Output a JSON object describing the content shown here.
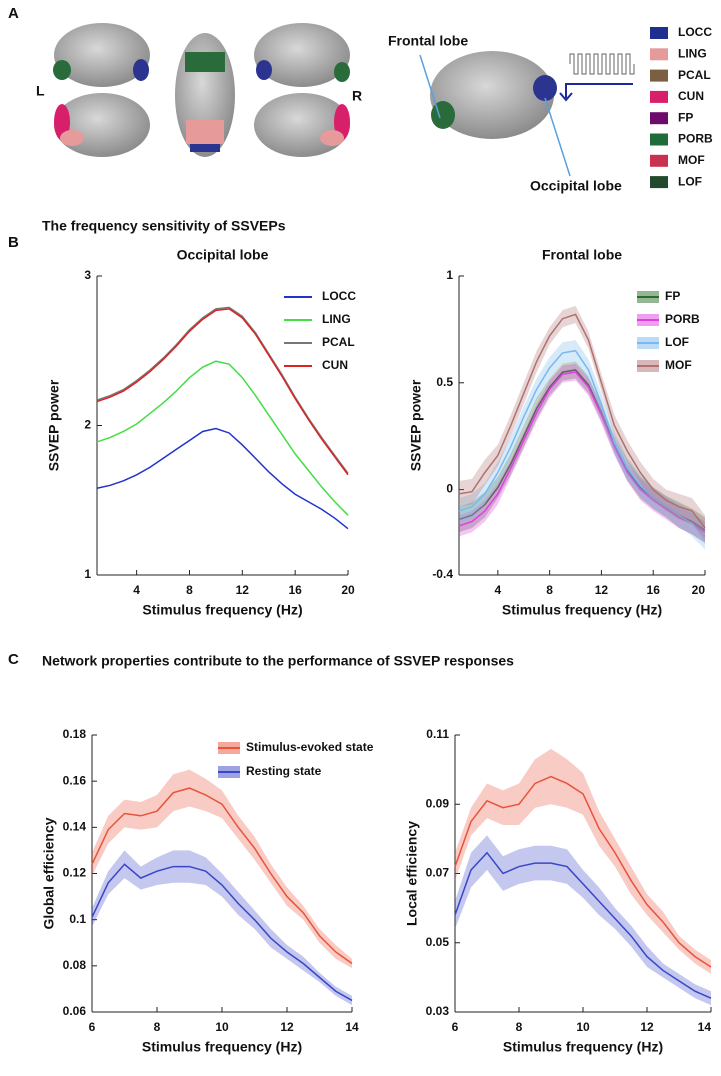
{
  "panel_a": {
    "label": "A",
    "left": "L",
    "right": "R",
    "frontal": "Frontal lobe",
    "occipital": "Occipital lobe",
    "regions": [
      {
        "name": "LOCC",
        "color": "#1f2f8f"
      },
      {
        "name": "LING",
        "color": "#e69a9a"
      },
      {
        "name": "PCAL",
        "color": "#7a6040"
      },
      {
        "name": "CUN",
        "color": "#d81f6a"
      },
      {
        "name": "FP",
        "color": "#6b0b6b"
      },
      {
        "name": "PORB",
        "color": "#1f6b3a"
      },
      {
        "name": "MOF",
        "color": "#c8314f"
      },
      {
        "name": "LOF",
        "color": "#234a2e"
      }
    ]
  },
  "panels": [
    {
      "label": "B",
      "title": "The frequency sensitivity of SSVEPs"
    },
    {
      "label": "C",
      "title": "Network properties contribute to the performance of SSVEP responses"
    }
  ],
  "chart_data": [
    {
      "type": "line",
      "title": "Occipital lobe",
      "xlabel": "Stimulus frequency (Hz)",
      "ylabel": "SSVEP power",
      "x": [
        1,
        2,
        3,
        4,
        5,
        6,
        7,
        8,
        9,
        10,
        11,
        12,
        13,
        14,
        15,
        16,
        17,
        18,
        19,
        20
      ],
      "xlim": [
        1,
        20
      ],
      "xticks": [
        4,
        8,
        12,
        16,
        20
      ],
      "ylim": [
        1,
        3
      ],
      "yticks": [
        1,
        2,
        3
      ],
      "legend": true,
      "series": [
        {
          "name": "LOCC",
          "color": "#2233cc",
          "values": [
            1.58,
            1.6,
            1.63,
            1.67,
            1.72,
            1.78,
            1.84,
            1.9,
            1.96,
            1.98,
            1.95,
            1.87,
            1.78,
            1.69,
            1.61,
            1.54,
            1.49,
            1.44,
            1.38,
            1.31
          ]
        },
        {
          "name": "LING",
          "color": "#44dd44",
          "values": [
            1.89,
            1.92,
            1.96,
            2.01,
            2.08,
            2.15,
            2.23,
            2.32,
            2.39,
            2.43,
            2.41,
            2.32,
            2.2,
            2.07,
            1.94,
            1.81,
            1.7,
            1.59,
            1.49,
            1.4
          ]
        },
        {
          "name": "PCAL",
          "color": "#777777",
          "values": [
            2.17,
            2.2,
            2.24,
            2.3,
            2.37,
            2.45,
            2.54,
            2.64,
            2.72,
            2.78,
            2.79,
            2.73,
            2.62,
            2.48,
            2.34,
            2.19,
            2.05,
            1.92,
            1.8,
            1.68
          ]
        },
        {
          "name": "CUN",
          "color": "#dd2222",
          "values": [
            2.16,
            2.19,
            2.23,
            2.29,
            2.36,
            2.44,
            2.53,
            2.63,
            2.71,
            2.77,
            2.78,
            2.72,
            2.61,
            2.47,
            2.33,
            2.18,
            2.04,
            1.91,
            1.79,
            1.67
          ]
        }
      ]
    },
    {
      "type": "line",
      "title": "Frontal lobe",
      "xlabel": "Stimulus frequency (Hz)",
      "ylabel": "SSVEP power",
      "x": [
        1,
        2,
        3,
        4,
        5,
        6,
        7,
        8,
        9,
        10,
        11,
        12,
        13,
        14,
        15,
        16,
        17,
        18,
        19,
        20
      ],
      "xlim": [
        1,
        20
      ],
      "xticks": [
        4,
        8,
        12,
        16,
        20
      ],
      "ylim": [
        -0.4,
        1
      ],
      "yticks": [
        -0.4,
        0,
        0.5,
        1
      ],
      "legend": true,
      "series": [
        {
          "name": "FP",
          "color": "#2a6e2a",
          "values": [
            -0.14,
            -0.12,
            -0.07,
            0.01,
            0.12,
            0.25,
            0.38,
            0.48,
            0.55,
            0.56,
            0.49,
            0.36,
            0.21,
            0.09,
            0.01,
            -0.04,
            -0.08,
            -0.12,
            -0.15,
            -0.19
          ],
          "error": [
            0.06,
            0.06,
            0.06,
            0.05,
            0.05,
            0.05,
            0.05,
            0.04,
            0.04,
            0.04,
            0.04,
            0.04,
            0.04,
            0.05,
            0.05,
            0.05,
            0.05,
            0.06,
            0.06,
            0.06
          ]
        },
        {
          "name": "PORB",
          "color": "#e040e0",
          "values": [
            -0.17,
            -0.15,
            -0.1,
            -0.02,
            0.1,
            0.23,
            0.36,
            0.47,
            0.54,
            0.55,
            0.48,
            0.35,
            0.2,
            0.08,
            0.0,
            -0.05,
            -0.09,
            -0.13,
            -0.16,
            -0.2
          ],
          "error": [
            0.05,
            0.05,
            0.05,
            0.05,
            0.04,
            0.04,
            0.04,
            0.04,
            0.04,
            0.04,
            0.04,
            0.04,
            0.04,
            0.04,
            0.05,
            0.05,
            0.05,
            0.05,
            0.05,
            0.05
          ]
        },
        {
          "name": "LOF",
          "color": "#7ab8ee",
          "values": [
            -0.1,
            -0.08,
            -0.02,
            0.08,
            0.2,
            0.34,
            0.47,
            0.57,
            0.64,
            0.65,
            0.56,
            0.4,
            0.22,
            0.1,
            0.02,
            -0.04,
            -0.08,
            -0.12,
            -0.16,
            -0.22
          ],
          "error": [
            0.06,
            0.06,
            0.05,
            0.05,
            0.05,
            0.05,
            0.05,
            0.05,
            0.05,
            0.05,
            0.05,
            0.05,
            0.05,
            0.05,
            0.05,
            0.05,
            0.05,
            0.05,
            0.06,
            0.06
          ]
        },
        {
          "name": "MOF",
          "color": "#b07070",
          "values": [
            -0.02,
            -0.01,
            0.08,
            0.16,
            0.3,
            0.45,
            0.6,
            0.72,
            0.8,
            0.82,
            0.7,
            0.5,
            0.3,
            0.18,
            0.08,
            0.0,
            -0.05,
            -0.08,
            -0.1,
            -0.18
          ],
          "error": [
            0.06,
            0.06,
            0.06,
            0.05,
            0.05,
            0.05,
            0.05,
            0.04,
            0.04,
            0.04,
            0.04,
            0.04,
            0.05,
            0.05,
            0.05,
            0.05,
            0.05,
            0.06,
            0.06,
            0.06
          ]
        }
      ]
    },
    {
      "type": "line",
      "title": null,
      "xlabel": "Stimulus frequency (Hz)",
      "ylabel": "Global efficiency",
      "x": [
        6,
        6.5,
        7,
        7.5,
        8,
        8.5,
        9,
        9.5,
        10,
        10.5,
        11,
        11.5,
        12,
        12.5,
        13,
        13.5,
        14
      ],
      "xlim": [
        6,
        14
      ],
      "xticks": [
        6,
        8,
        10,
        12,
        14
      ],
      "ylim": [
        0.06,
        0.18
      ],
      "yticks": [
        0.06,
        0.08,
        0.1,
        0.12,
        0.14,
        0.16,
        0.18
      ],
      "legend": true,
      "series": [
        {
          "name": "Stimulus-evoked state",
          "color": "#e8533a",
          "values": [
            0.124,
            0.139,
            0.146,
            0.145,
            0.147,
            0.155,
            0.157,
            0.154,
            0.15,
            0.14,
            0.131,
            0.12,
            0.11,
            0.103,
            0.093,
            0.086,
            0.081
          ],
          "error": [
            0.005,
            0.006,
            0.006,
            0.006,
            0.007,
            0.008,
            0.008,
            0.007,
            0.006,
            0.005,
            0.005,
            0.004,
            0.004,
            0.003,
            0.003,
            0.003,
            0.002
          ]
        },
        {
          "name": "Resting state",
          "color": "#3a46c8",
          "values": [
            0.101,
            0.116,
            0.124,
            0.118,
            0.121,
            0.123,
            0.123,
            0.121,
            0.115,
            0.107,
            0.1,
            0.092,
            0.086,
            0.081,
            0.075,
            0.069,
            0.065
          ],
          "error": [
            0.004,
            0.005,
            0.006,
            0.005,
            0.006,
            0.007,
            0.007,
            0.006,
            0.005,
            0.005,
            0.004,
            0.004,
            0.003,
            0.003,
            0.002,
            0.002,
            0.002
          ]
        }
      ]
    },
    {
      "type": "line",
      "title": null,
      "xlabel": "Stimulus frequency (Hz)",
      "ylabel": "Local efficiency",
      "x": [
        6,
        6.5,
        7,
        7.5,
        8,
        8.5,
        9,
        9.5,
        10,
        10.5,
        11,
        11.5,
        12,
        12.5,
        13,
        13.5,
        14
      ],
      "xlim": [
        6,
        14
      ],
      "xticks": [
        6,
        8,
        10,
        12,
        14
      ],
      "ylim": [
        0.03,
        0.11
      ],
      "yticks": [
        0.03,
        0.05,
        0.07,
        0.09,
        0.11
      ],
      "legend": false,
      "series": [
        {
          "name": "Stimulus-evoked state",
          "color": "#e8533a",
          "values": [
            0.072,
            0.085,
            0.091,
            0.089,
            0.09,
            0.096,
            0.098,
            0.096,
            0.093,
            0.083,
            0.076,
            0.068,
            0.061,
            0.056,
            0.05,
            0.046,
            0.043
          ],
          "error": [
            0.004,
            0.004,
            0.005,
            0.005,
            0.006,
            0.007,
            0.008,
            0.007,
            0.006,
            0.005,
            0.004,
            0.004,
            0.003,
            0.003,
            0.002,
            0.002,
            0.002
          ]
        },
        {
          "name": "Resting state",
          "color": "#3a46c8",
          "values": [
            0.058,
            0.071,
            0.076,
            0.07,
            0.072,
            0.073,
            0.073,
            0.072,
            0.067,
            0.062,
            0.057,
            0.052,
            0.046,
            0.042,
            0.039,
            0.036,
            0.034
          ],
          "error": [
            0.004,
            0.005,
            0.005,
            0.005,
            0.005,
            0.005,
            0.005,
            0.005,
            0.004,
            0.004,
            0.003,
            0.003,
            0.003,
            0.002,
            0.002,
            0.002,
            0.002
          ]
        }
      ]
    }
  ]
}
